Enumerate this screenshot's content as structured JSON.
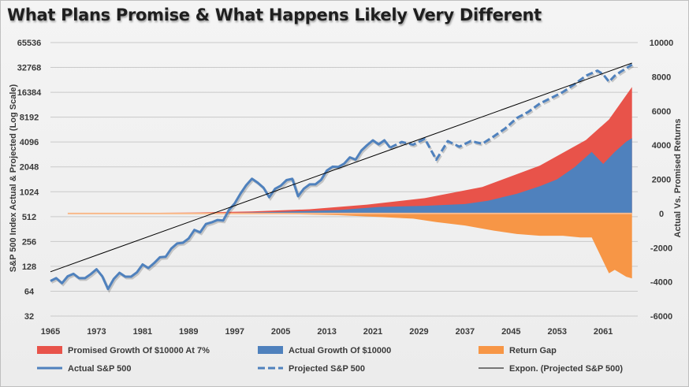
{
  "title": "What Plans Promise & What Happens Likely Very Different",
  "chart_data": {
    "type": "line",
    "y_left_label": "S&P 500 Index Actual & Projected (Log Scale)",
    "y_right_label": "Actual Vs. Promised Returns",
    "y_left_scale": "log2",
    "y_left_ticks": [
      32,
      64,
      128,
      256,
      512,
      1024,
      2048,
      4096,
      8192,
      16384,
      32768,
      65536
    ],
    "y_left_tick_labels": [
      "32",
      "64",
      "128",
      "256",
      "512",
      "1024",
      "2048",
      "4096",
      "8192",
      "16384",
      "32768",
      "65536"
    ],
    "y_left_lim": [
      32,
      65536
    ],
    "y_right_ticks": [
      -6000,
      -4000,
      -2000,
      0,
      2000,
      4000,
      6000,
      8000,
      10000
    ],
    "y_right_tick_labels": [
      "-6000",
      "-4000",
      "-2000",
      "0",
      "2000",
      "4000",
      "6000",
      "8000",
      "10000"
    ],
    "y_right_lim": [
      -6000,
      10000
    ],
    "x_ticks": [
      1965,
      1973,
      1981,
      1989,
      1997,
      2005,
      2013,
      2021,
      2029,
      2037,
      2045,
      2053,
      2061
    ],
    "x_tick_labels": [
      "1965",
      "1973",
      "1981",
      "1989",
      "1997",
      "2005",
      "2013",
      "2021",
      "2029",
      "2037",
      "2045",
      "2053",
      "2061"
    ],
    "x_lim": [
      1965,
      2067
    ],
    "grid": "horizontal",
    "legend_position": "bottom",
    "series": [
      {
        "name": "Promised Growth Of $10000 At 7%",
        "kind": "area",
        "axis": "right",
        "color": "#e8534a",
        "points": [
          [
            1968,
            0
          ],
          [
            1990,
            60
          ],
          [
            2000,
            120
          ],
          [
            2010,
            250
          ],
          [
            2020,
            520
          ],
          [
            2030,
            900
          ],
          [
            2040,
            1550
          ],
          [
            2050,
            2800
          ],
          [
            2058,
            4300
          ],
          [
            2062,
            5500
          ],
          [
            2066,
            7400
          ]
        ]
      },
      {
        "name": "Actual Growth Of $10000",
        "kind": "area",
        "axis": "right",
        "color": "#4f81bd",
        "points": [
          [
            1968,
            0
          ],
          [
            1995,
            30
          ],
          [
            2005,
            100
          ],
          [
            2015,
            200
          ],
          [
            2022,
            380
          ],
          [
            2030,
            450
          ],
          [
            2037,
            550
          ],
          [
            2041,
            750
          ],
          [
            2046,
            1150
          ],
          [
            2050,
            1600
          ],
          [
            2053,
            2000
          ],
          [
            2056,
            2700
          ],
          [
            2059,
            3600
          ],
          [
            2061,
            2900
          ],
          [
            2063,
            3600
          ],
          [
            2065,
            4200
          ],
          [
            2066,
            4400
          ]
        ]
      },
      {
        "name": "Return Gap",
        "kind": "area",
        "axis": "right",
        "color": "#f79646",
        "points": [
          [
            1968,
            0
          ],
          [
            1995,
            -10
          ],
          [
            2005,
            -30
          ],
          [
            2015,
            -100
          ],
          [
            2022,
            -200
          ],
          [
            2028,
            -300
          ],
          [
            2032,
            -500
          ],
          [
            2037,
            -700
          ],
          [
            2042,
            -1000
          ],
          [
            2046,
            -1200
          ],
          [
            2050,
            -1300
          ],
          [
            2054,
            -1300
          ],
          [
            2057,
            -1400
          ],
          [
            2059,
            -1400
          ],
          [
            2061,
            -2800
          ],
          [
            2062,
            -3500
          ],
          [
            2063,
            -3300
          ],
          [
            2065,
            -3700
          ],
          [
            2066,
            -3800
          ]
        ]
      },
      {
        "name": "Actual S&P 500",
        "kind": "line",
        "axis": "left",
        "color": "#4f81bd",
        "points": [
          [
            1965,
            85
          ],
          [
            1966,
            92
          ],
          [
            1967,
            80
          ],
          [
            1968,
            97
          ],
          [
            1969,
            104
          ],
          [
            1970,
            92
          ],
          [
            1971,
            92
          ],
          [
            1972,
            103
          ],
          [
            1973,
            118
          ],
          [
            1974,
            97
          ],
          [
            1975,
            68
          ],
          [
            1976,
            90
          ],
          [
            1977,
            107
          ],
          [
            1978,
            96
          ],
          [
            1979,
            96
          ],
          [
            1980,
            108
          ],
          [
            1981,
            135
          ],
          [
            1982,
            122
          ],
          [
            1983,
            140
          ],
          [
            1984,
            165
          ],
          [
            1985,
            167
          ],
          [
            1986,
            211
          ],
          [
            1987,
            242
          ],
          [
            1988,
            247
          ],
          [
            1989,
            278
          ],
          [
            1990,
            353
          ],
          [
            1991,
            330
          ],
          [
            1992,
            417
          ],
          [
            1993,
            436
          ],
          [
            1994,
            466
          ],
          [
            1995,
            459
          ],
          [
            1996,
            616
          ],
          [
            1997,
            740
          ],
          [
            1998,
            970
          ],
          [
            1999,
            1229
          ],
          [
            2000,
            1469
          ],
          [
            2001,
            1320
          ],
          [
            2002,
            1148
          ],
          [
            2003,
            880
          ],
          [
            2004,
            1111
          ],
          [
            2005,
            1212
          ],
          [
            2006,
            1418
          ],
          [
            2007,
            1468
          ],
          [
            2008,
            903
          ],
          [
            2009,
            1115
          ],
          [
            2010,
            1257
          ],
          [
            2011,
            1258
          ],
          [
            2012,
            1426
          ],
          [
            2013,
            1848
          ],
          [
            2014,
            2058
          ],
          [
            2015,
            2044
          ],
          [
            2016,
            2238
          ],
          [
            2017,
            2673
          ],
          [
            2018,
            2507
          ],
          [
            2019,
            3230
          ],
          [
            2020,
            3756
          ],
          [
            2021,
            4300
          ],
          [
            2022,
            3840
          ],
          [
            2023,
            4300
          ],
          [
            2024,
            3500
          ]
        ]
      },
      {
        "name": "Projected S&P 500",
        "kind": "line",
        "dashed": true,
        "axis": "left",
        "color": "#4f81bd",
        "points": [
          [
            2024,
            3500
          ],
          [
            2026,
            4100
          ],
          [
            2028,
            3800
          ],
          [
            2030,
            4500
          ],
          [
            2032,
            2500
          ],
          [
            2034,
            4200
          ],
          [
            2036,
            3600
          ],
          [
            2038,
            4200
          ],
          [
            2040,
            3900
          ],
          [
            2042,
            4800
          ],
          [
            2044,
            6000
          ],
          [
            2046,
            8000
          ],
          [
            2048,
            9500
          ],
          [
            2050,
            12000
          ],
          [
            2052,
            14000
          ],
          [
            2054,
            16500
          ],
          [
            2056,
            20500
          ],
          [
            2058,
            26000
          ],
          [
            2060,
            30000
          ],
          [
            2061,
            27000
          ],
          [
            2062,
            22000
          ],
          [
            2063,
            26000
          ],
          [
            2064,
            29000
          ],
          [
            2065,
            32000
          ],
          [
            2066,
            35500
          ]
        ]
      },
      {
        "name": "Expon. (Projected S&P 500)",
        "kind": "trend",
        "axis": "left",
        "color": "#000000",
        "points": [
          [
            1965,
            110
          ],
          [
            2066,
            37000
          ]
        ]
      }
    ]
  }
}
